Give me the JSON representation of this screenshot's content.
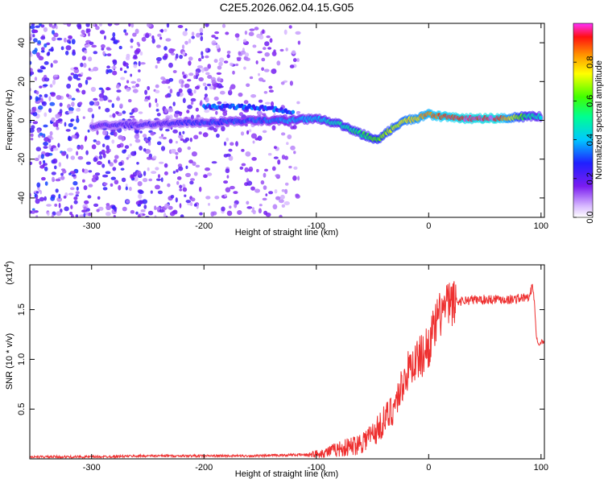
{
  "title": "C2E5.2026.062.04.15.G05",
  "chart_data": [
    {
      "type": "heatmap",
      "name": "spectrogram",
      "xlabel": "Height of straight line (km)",
      "ylabel": "Frequency (Hz)",
      "xlim": [
        -355,
        103
      ],
      "ylim": [
        -50,
        50
      ],
      "xticks": [
        -300,
        -200,
        -100,
        0,
        100
      ],
      "yticks": [
        -40,
        -20,
        0,
        20,
        40
      ],
      "colorbar": {
        "label": "Normalized spectral amplitude",
        "range": [
          0,
          1
        ],
        "ticks": [
          0.0,
          0.2,
          0.4,
          0.6,
          0.8
        ]
      },
      "ridge": {
        "x": [
          -300,
          -250,
          -200,
          -150,
          -120,
          -100,
          -80,
          -60,
          -45,
          -30,
          -20,
          -10,
          0,
          10,
          30,
          60,
          90,
          100
        ],
        "y": [
          -3,
          -2,
          -1,
          0,
          0,
          1,
          -2,
          -7,
          -10,
          -3,
          0,
          1,
          3,
          2,
          1,
          1,
          2,
          2
        ],
        "amplitude": [
          0.22,
          0.22,
          0.28,
          0.33,
          0.38,
          0.42,
          0.48,
          0.55,
          0.62,
          0.7,
          0.75,
          0.8,
          0.85,
          0.9,
          0.95,
          0.97,
          0.5,
          0.45
        ]
      },
      "upper_branch": {
        "x": [
          -200,
          -180,
          -160,
          -140,
          -120
        ],
        "y": [
          7,
          7,
          7,
          6,
          4
        ]
      }
    },
    {
      "type": "line",
      "name": "snr",
      "xlabel": "Height of straight line (km)",
      "ylabel": "SNR (10 * v/v)",
      "y_multiplier": "(x10",
      "y_multiplier_exp": "4",
      "xlim": [
        -355,
        103
      ],
      "ylim": [
        0,
        1.95
      ],
      "xticks": [
        -300,
        -200,
        -100,
        0,
        100
      ],
      "yticks": [
        0.5,
        1.0,
        1.5
      ],
      "ytick_labels": [
        "0.5",
        "1.0",
        "1.5"
      ],
      "color": "#ee3030",
      "series": [
        {
          "name": "SNR",
          "x": [
            -355,
            -300,
            -250,
            -200,
            -150,
            -120,
            -110,
            -100,
            -90,
            -80,
            -70,
            -60,
            -50,
            -45,
            -40,
            -35,
            -30,
            -25,
            -20,
            -15,
            -10,
            -5,
            0,
            5,
            10,
            15,
            20,
            25,
            30,
            40,
            50,
            60,
            70,
            80,
            85,
            90,
            92,
            94,
            96,
            98,
            103
          ],
          "y": [
            0.02,
            0.02,
            0.03,
            0.03,
            0.03,
            0.04,
            0.04,
            0.05,
            0.07,
            0.1,
            0.12,
            0.17,
            0.25,
            0.3,
            0.38,
            0.45,
            0.55,
            0.7,
            0.85,
            0.95,
            1.0,
            1.05,
            1.15,
            1.3,
            1.45,
            1.53,
            1.56,
            1.58,
            1.59,
            1.6,
            1.6,
            1.61,
            1.6,
            1.61,
            1.62,
            1.62,
            1.75,
            1.6,
            1.2,
            1.17,
            1.17
          ]
        }
      ]
    }
  ]
}
